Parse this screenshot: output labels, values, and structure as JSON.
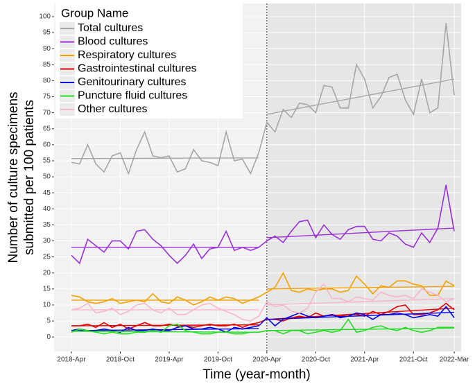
{
  "chart_data": {
    "type": "line",
    "x_label": "Time (year-month)",
    "y_label": [
      "Number of culture specimens",
      "submitted per 100 patients"
    ],
    "legend_title": "Group Name",
    "legend_position": "top-left",
    "grid": true,
    "categories": [
      "2018-Apr",
      null,
      null,
      null,
      null,
      null,
      "2018-Oct",
      null,
      null,
      null,
      null,
      null,
      "2019-Apr",
      null,
      null,
      null,
      null,
      null,
      "2019-Oct",
      null,
      null,
      null,
      null,
      null,
      "2020-Apr",
      null,
      null,
      null,
      null,
      null,
      "2020-Oct",
      null,
      null,
      null,
      null,
      null,
      "2021-Apr",
      null,
      null,
      null,
      null,
      null,
      "2021-Oct",
      null,
      null,
      null,
      null,
      "2022-Mar"
    ],
    "ylim": [
      -4.5,
      104.1
    ],
    "yticks": [
      0,
      5,
      10,
      15,
      20,
      25,
      30,
      35,
      40,
      45,
      50,
      55,
      60,
      65,
      70,
      75,
      80,
      85,
      90,
      95,
      100
    ],
    "series": [
      {
        "name": "Total cultures",
        "color": "#a6a6a6",
        "values": [
          54.5,
          54,
          60,
          54,
          51.5,
          56.5,
          57.5,
          51,
          58.5,
          64,
          56.5,
          56,
          56.5,
          51.5,
          52.5,
          58.5,
          55,
          54.5,
          53.5,
          64,
          55,
          55.5,
          51,
          57.5,
          67,
          64,
          71,
          68.5,
          73,
          72.5,
          70,
          78.5,
          78,
          71.5,
          71.5,
          85,
          80.5,
          71.5,
          75,
          81,
          82,
          74,
          69.5,
          80.5,
          70,
          71.5,
          98,
          75.5
        ],
        "trend_pre": [
          55.7,
          55.9
        ],
        "trend_post": [
          69.5,
          80.5
        ]
      },
      {
        "name": "Blood cultures",
        "color": "#9b2fd6",
        "values": [
          25.5,
          23,
          30.5,
          28.5,
          26.5,
          30,
          30,
          27.5,
          33,
          33.5,
          30.5,
          28.5,
          25.5,
          23,
          25.5,
          29,
          24.5,
          27.5,
          28,
          33,
          27,
          28,
          27,
          28,
          30,
          31.5,
          29.5,
          33,
          36,
          36.5,
          31,
          35,
          32,
          30.5,
          33.5,
          34.5,
          34.5,
          30.5,
          30,
          32.5,
          31.5,
          29,
          28,
          32.5,
          29.5,
          34,
          47.5,
          33
        ],
        "trend_pre": [
          28,
          28
        ],
        "trend_post": [
          31,
          34
        ]
      },
      {
        "name": "Respiratory cultures",
        "color": "#f5a000",
        "values": [
          13,
          12.5,
          11,
          10.5,
          11,
          12,
          10.5,
          11,
          11.5,
          11,
          13.5,
          11,
          10.5,
          12.5,
          11.5,
          10,
          11,
          12.5,
          11.5,
          12.5,
          12,
          10.5,
          11.5,
          12.5,
          14,
          15.5,
          20,
          14.5,
          14,
          15,
          14.5,
          15,
          15,
          14,
          14.5,
          19,
          16.5,
          13.5,
          16,
          15.5,
          17.5,
          17.5,
          16.5,
          16,
          13,
          13,
          17.5,
          16
        ],
        "trend_pre": [
          11.5,
          11.5
        ],
        "trend_post": [
          15,
          15.8
        ]
      },
      {
        "name": "Gastrointestinal cultures",
        "color": "#e00000",
        "values": [
          3.5,
          3.5,
          4,
          3,
          4.5,
          3,
          4,
          2.5,
          3.5,
          4.5,
          3.5,
          3.5,
          4,
          3.5,
          3.5,
          3,
          3.5,
          4,
          3.5,
          3.5,
          4,
          3,
          4,
          4.5,
          5.5,
          5.5,
          5,
          6,
          6.5,
          6,
          7.5,
          6.5,
          7,
          6.5,
          7,
          7,
          6.5,
          8,
          7,
          8,
          9.5,
          10,
          7,
          7,
          7.5,
          8.5,
          10.5,
          8.5
        ],
        "trend_pre": [
          3.5,
          3.8
        ],
        "trend_post": [
          5.5,
          9
        ]
      },
      {
        "name": "Genitourinary cultures",
        "color": "#0000e0",
        "values": [
          2,
          2.5,
          2,
          2,
          2.5,
          2,
          1.5,
          3,
          2,
          2,
          2.5,
          2,
          2,
          3,
          3.5,
          2.5,
          2.5,
          3,
          2.5,
          1.5,
          3,
          2.5,
          3,
          3.5,
          6,
          3.5,
          5.5,
          6.5,
          7.5,
          6.5,
          6,
          6.5,
          7,
          6,
          6.5,
          7.5,
          7,
          5.5,
          7,
          7,
          7.5,
          7,
          6,
          6.5,
          7,
          6.5,
          9.5,
          6
        ],
        "trend_pre": [
          2,
          2.6
        ],
        "trend_post": [
          5.5,
          7.7
        ]
      },
      {
        "name": "Puncture fluid cultures",
        "color": "#22dd22",
        "values": [
          1.5,
          2.5,
          2,
          1.5,
          1,
          1.5,
          1,
          1,
          1.5,
          1.5,
          2,
          1.5,
          3.5,
          4,
          2,
          1.5,
          1,
          1,
          1.5,
          1.5,
          1,
          1,
          1.5,
          1.5,
          2,
          2,
          1,
          2,
          2,
          1,
          1.5,
          2,
          1.5,
          2,
          5.5,
          1.5,
          2,
          3,
          3.5,
          2.5,
          2,
          3,
          2,
          1.5,
          2,
          3,
          3,
          3
        ],
        "trend_pre": [
          1.8,
          1.5
        ],
        "trend_post": [
          2,
          2.8
        ]
      },
      {
        "name": "Other cultures",
        "color": "#f7b6c6",
        "values": [
          8.5,
          9,
          10.5,
          7.5,
          8,
          9,
          7,
          8,
          10,
          10.5,
          8.5,
          7.5,
          9,
          7,
          7,
          8.5,
          10,
          10.5,
          9,
          8,
          7,
          5.5,
          5,
          6.5,
          11,
          9.5,
          10,
          8,
          7.5,
          9,
          14,
          16.5,
          12,
          12,
          11,
          12.5,
          12,
          11.5,
          14,
          13,
          12.5,
          13,
          12,
          15,
          14,
          13,
          11,
          12
        ],
        "trend_pre": [
          8.5,
          8.5
        ],
        "trend_post": [
          10,
          12
        ]
      }
    ]
  }
}
